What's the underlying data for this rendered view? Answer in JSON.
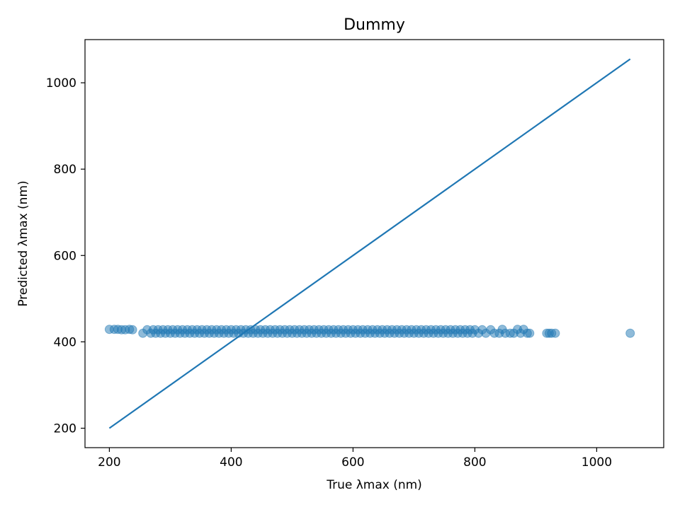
{
  "chart_data": {
    "type": "scatter",
    "title": "Dummy",
    "xlabel": "True λmax (nm)",
    "ylabel": "Predicted λmax (nm)",
    "xlim": [
      160,
      1110
    ],
    "ylim": [
      155,
      1100
    ],
    "xticks": [
      200,
      400,
      600,
      800,
      1000
    ],
    "yticks": [
      200,
      400,
      600,
      800,
      1000
    ],
    "grid": false,
    "point_color": "#1f77b4",
    "point_alpha": 0.5,
    "line_color": "#1f77b4",
    "reference_line": {
      "x": [
        200,
        1055
      ],
      "y": [
        200,
        1055
      ]
    },
    "series": [
      {
        "points": [
          [
            200,
            429
          ],
          [
            208,
            429
          ],
          [
            214,
            429
          ],
          [
            220,
            428
          ],
          [
            226,
            428
          ],
          [
            233,
            429
          ],
          [
            238,
            428
          ],
          [
            255,
            420
          ],
          [
            262,
            428
          ],
          [
            268,
            420
          ],
          [
            272,
            428
          ],
          [
            276,
            420
          ],
          [
            280,
            428
          ],
          [
            284,
            420
          ],
          [
            288,
            428
          ],
          [
            292,
            420
          ],
          [
            296,
            428
          ],
          [
            300,
            420
          ],
          [
            304,
            428
          ],
          [
            308,
            420
          ],
          [
            312,
            428
          ],
          [
            316,
            420
          ],
          [
            320,
            428
          ],
          [
            324,
            420
          ],
          [
            328,
            428
          ],
          [
            332,
            420
          ],
          [
            336,
            428
          ],
          [
            340,
            420
          ],
          [
            344,
            428
          ],
          [
            348,
            420
          ],
          [
            352,
            428
          ],
          [
            356,
            420
          ],
          [
            360,
            428
          ],
          [
            364,
            420
          ],
          [
            368,
            428
          ],
          [
            372,
            420
          ],
          [
            376,
            428
          ],
          [
            380,
            420
          ],
          [
            384,
            428
          ],
          [
            388,
            420
          ],
          [
            392,
            428
          ],
          [
            396,
            420
          ],
          [
            400,
            428
          ],
          [
            404,
            420
          ],
          [
            408,
            428
          ],
          [
            412,
            420
          ],
          [
            416,
            428
          ],
          [
            420,
            420
          ],
          [
            424,
            428
          ],
          [
            428,
            420
          ],
          [
            432,
            428
          ],
          [
            436,
            420
          ],
          [
            440,
            428
          ],
          [
            444,
            420
          ],
          [
            448,
            428
          ],
          [
            452,
            420
          ],
          [
            456,
            428
          ],
          [
            460,
            420
          ],
          [
            464,
            428
          ],
          [
            468,
            420
          ],
          [
            472,
            428
          ],
          [
            476,
            420
          ],
          [
            480,
            428
          ],
          [
            484,
            420
          ],
          [
            488,
            428
          ],
          [
            492,
            420
          ],
          [
            496,
            428
          ],
          [
            500,
            420
          ],
          [
            504,
            428
          ],
          [
            508,
            420
          ],
          [
            512,
            428
          ],
          [
            516,
            420
          ],
          [
            520,
            428
          ],
          [
            524,
            420
          ],
          [
            528,
            428
          ],
          [
            532,
            420
          ],
          [
            536,
            428
          ],
          [
            540,
            420
          ],
          [
            544,
            428
          ],
          [
            548,
            420
          ],
          [
            552,
            428
          ],
          [
            556,
            420
          ],
          [
            560,
            428
          ],
          [
            564,
            420
          ],
          [
            568,
            428
          ],
          [
            572,
            420
          ],
          [
            576,
            428
          ],
          [
            580,
            420
          ],
          [
            584,
            428
          ],
          [
            588,
            420
          ],
          [
            592,
            428
          ],
          [
            596,
            420
          ],
          [
            600,
            428
          ],
          [
            604,
            420
          ],
          [
            608,
            428
          ],
          [
            612,
            420
          ],
          [
            616,
            428
          ],
          [
            620,
            420
          ],
          [
            624,
            428
          ],
          [
            628,
            420
          ],
          [
            632,
            428
          ],
          [
            636,
            420
          ],
          [
            640,
            428
          ],
          [
            644,
            420
          ],
          [
            648,
            428
          ],
          [
            652,
            420
          ],
          [
            656,
            428
          ],
          [
            660,
            420
          ],
          [
            664,
            428
          ],
          [
            668,
            420
          ],
          [
            672,
            428
          ],
          [
            676,
            420
          ],
          [
            680,
            428
          ],
          [
            684,
            420
          ],
          [
            688,
            428
          ],
          [
            692,
            420
          ],
          [
            696,
            428
          ],
          [
            700,
            420
          ],
          [
            704,
            428
          ],
          [
            708,
            420
          ],
          [
            712,
            428
          ],
          [
            716,
            420
          ],
          [
            720,
            428
          ],
          [
            724,
            420
          ],
          [
            728,
            428
          ],
          [
            732,
            420
          ],
          [
            736,
            428
          ],
          [
            740,
            420
          ],
          [
            744,
            428
          ],
          [
            748,
            420
          ],
          [
            752,
            428
          ],
          [
            756,
            420
          ],
          [
            760,
            428
          ],
          [
            764,
            420
          ],
          [
            768,
            428
          ],
          [
            772,
            420
          ],
          [
            776,
            428
          ],
          [
            780,
            420
          ],
          [
            784,
            428
          ],
          [
            788,
            420
          ],
          [
            792,
            428
          ],
          [
            796,
            420
          ],
          [
            800,
            428
          ],
          [
            806,
            420
          ],
          [
            812,
            428
          ],
          [
            818,
            420
          ],
          [
            826,
            428
          ],
          [
            832,
            420
          ],
          [
            840,
            420
          ],
          [
            845,
            429
          ],
          [
            850,
            420
          ],
          [
            858,
            420
          ],
          [
            864,
            420
          ],
          [
            870,
            429
          ],
          [
            875,
            420
          ],
          [
            880,
            429
          ],
          [
            886,
            420
          ],
          [
            890,
            420
          ],
          [
            918,
            420
          ],
          [
            922,
            420
          ],
          [
            926,
            420
          ],
          [
            932,
            420
          ],
          [
            1055,
            420
          ]
        ]
      }
    ]
  }
}
